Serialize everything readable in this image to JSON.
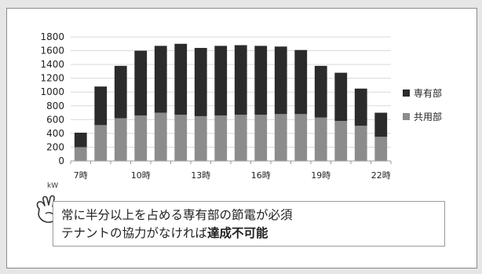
{
  "chart_data": {
    "type": "bar",
    "stacked": true,
    "categories": [
      "7時",
      "8時",
      "9時",
      "10時",
      "11時",
      "12時",
      "13時",
      "14時",
      "15時",
      "16時",
      "17時",
      "18時",
      "19時",
      "20時",
      "21時",
      "22時"
    ],
    "visible_tick_labels": [
      "7時",
      "10時",
      "13時",
      "16時",
      "19時",
      "22時"
    ],
    "series": [
      {
        "name": "共用部",
        "color": "#8c8c8c",
        "values": [
          200,
          520,
          620,
          660,
          700,
          670,
          650,
          660,
          670,
          670,
          680,
          680,
          630,
          580,
          510,
          350
        ]
      },
      {
        "name": "専有部",
        "color": "#2b2b2b",
        "values": [
          210,
          560,
          760,
          940,
          970,
          1030,
          990,
          1010,
          1010,
          1000,
          980,
          930,
          750,
          700,
          540,
          350
        ]
      }
    ],
    "ylim": [
      0,
      1800
    ],
    "yticks": [
      0,
      200,
      400,
      600,
      800,
      1000,
      1200,
      1400,
      1600,
      1800
    ],
    "ylabel": "",
    "unit": "kW",
    "grid": true,
    "legend_position": "right"
  },
  "legend": [
    {
      "label": "専有部",
      "color": "#2b2b2b"
    },
    {
      "label": "共用部",
      "color": "#8c8c8c"
    }
  ],
  "callout": {
    "line1": "常に半分以上を占める専有部の節電が必須",
    "line2_normal": "テナントの協力がなければ",
    "line2_strong": "達成不可能"
  }
}
